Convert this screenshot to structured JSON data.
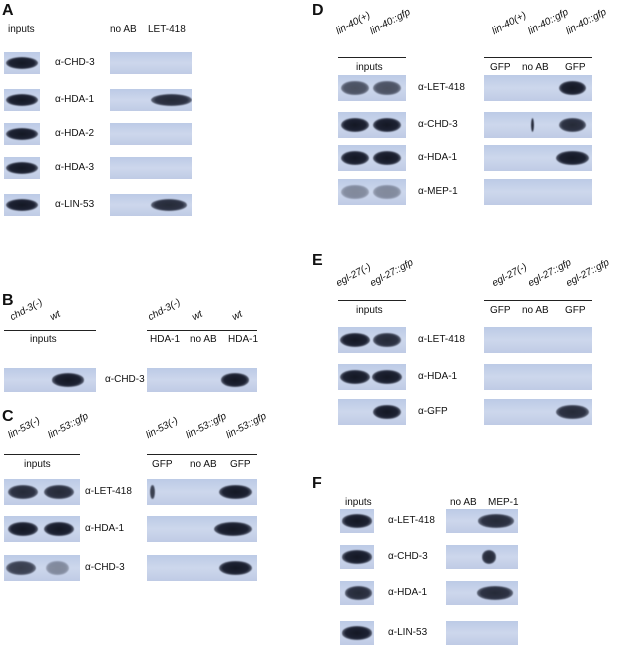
{
  "panels": [
    {
      "letter": "A",
      "inputs": "inputs",
      "ip_lanes": [
        "no AB",
        "LET-418"
      ],
      "rows": [
        "α-CHD-3",
        "α-HDA-1",
        "α-HDA-2",
        "α-HDA-3",
        "α-LIN-53"
      ]
    },
    {
      "letter": "B",
      "input_strains": [
        "chd-3(-)",
        "wt"
      ],
      "inputs": "inputs",
      "ip_strains": [
        "chd-3(-)",
        "wt",
        "wt"
      ],
      "ip_lanes": [
        "HDA-1",
        "no AB",
        "HDA-1"
      ],
      "rows": [
        "α-CHD-3"
      ]
    },
    {
      "letter": "C",
      "input_strains": [
        "lin-53(-)",
        "lin-53::gfp"
      ],
      "inputs": "inputs",
      "ip_strains": [
        "lin-53(-)",
        "lin-53::gfp",
        "lin-53::gfp"
      ],
      "ip_lanes": [
        "GFP",
        "no AB",
        "GFP"
      ],
      "rows": [
        "α-LET-418",
        "α-HDA-1",
        "α-CHD-3"
      ]
    },
    {
      "letter": "D",
      "input_strains": [
        "lin-40(+)",
        "lin-40::gfp"
      ],
      "inputs": "inputs",
      "ip_strains": [
        "lin-40(+)",
        "lin-40::gfp",
        "lin-40::gfp"
      ],
      "ip_lanes": [
        "GFP",
        "no AB",
        "GFP"
      ],
      "rows": [
        "α-LET-418",
        "α-CHD-3",
        "α-HDA-1",
        "α-MEP-1"
      ]
    },
    {
      "letter": "E",
      "input_strains": [
        "egl-27(-)",
        "egl-27::gfp"
      ],
      "inputs": "inputs",
      "ip_strains": [
        "egl-27(-)",
        "egl-27::gfp",
        "egl-27::gfp"
      ],
      "ip_lanes": [
        "GFP",
        "no AB",
        "GFP"
      ],
      "rows": [
        "α-LET-418",
        "α-HDA-1",
        "α-GFP"
      ]
    },
    {
      "letter": "F",
      "inputs": "inputs",
      "ip_lanes": [
        "no AB",
        "MEP-1"
      ],
      "rows": [
        "α-LET-418",
        "α-CHD-3",
        "α-HDA-1",
        "α-LIN-53"
      ]
    }
  ]
}
